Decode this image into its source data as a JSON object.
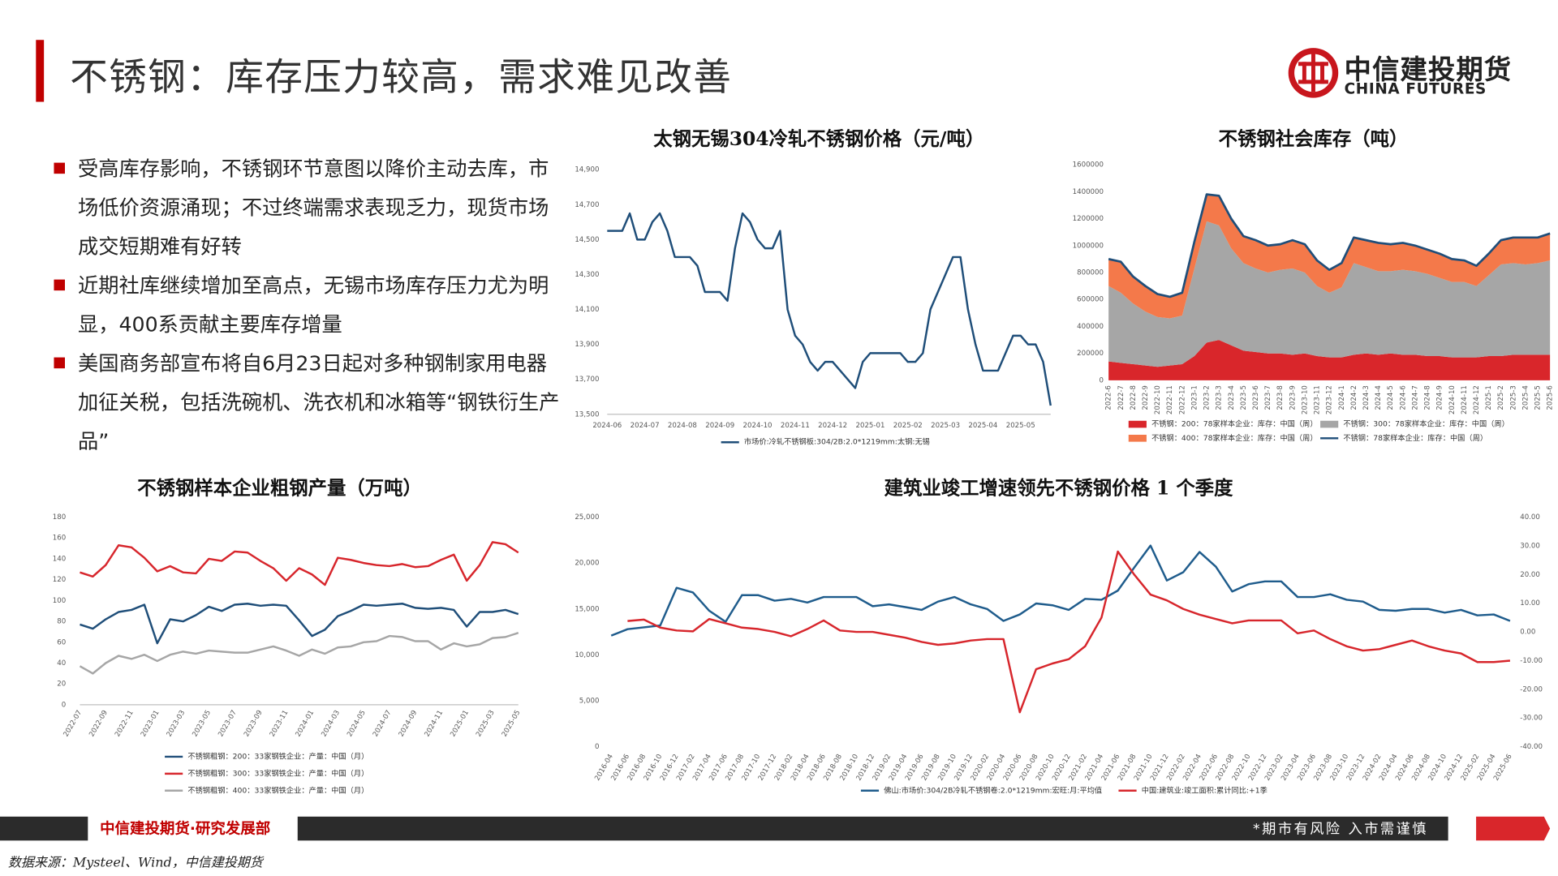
{
  "header": {
    "title": "不锈钢：库存压力较高，需求难见改善",
    "logo_cn": "中信建投期货",
    "logo_en": "CHINA FUTURES"
  },
  "bullets": [
    "受高库存影响，不锈钢环节意图以降价主动去库，市场低价资源涌现；不过终端需求表现乏力，现货市场成交短期难有好转",
    "近期社库继续增加至高点，无锡市场库存压力尤为明显，400系贡献主要库存增量",
    "美国商务部宣布将自6月23日起对多种钢制家用电器加征关税，包括洗碗机、洗衣机和冰箱等“钢铁衍生产品”"
  ],
  "footer": {
    "left": "中信建投期货·研究发展部",
    "right": "*期市有风险 入市需谨慎",
    "source": "数据来源：Mysteel、Wind，中信建投期货"
  },
  "chart_data": [
    {
      "type": "line",
      "title": "太钢无锡304冷轧不锈钢价格（元/吨）",
      "categories": [
        "2024-06",
        null,
        null,
        null,
        null,
        "2024-07",
        null,
        null,
        null,
        null,
        "2024-08",
        null,
        null,
        null,
        null,
        "2024-09",
        null,
        null,
        null,
        null,
        "2024-10",
        null,
        null,
        null,
        null,
        "2024-11",
        null,
        null,
        null,
        null,
        "2024-12",
        null,
        null,
        null,
        null,
        "2025-01",
        null,
        null,
        null,
        null,
        "2025-02",
        null,
        null,
        null,
        null,
        "2025-03",
        null,
        null,
        null,
        null,
        "2025-04",
        null,
        null,
        null,
        null,
        "2025-05",
        null,
        null,
        null,
        null
      ],
      "series": [
        {
          "name": "市场价:冷轧不锈钢板:304/2B:2.0*1219mm:太钢:无锡",
          "color": "#1f4e79",
          "values": [
            14550,
            14550,
            14550,
            14650,
            14500,
            14500,
            14600,
            14650,
            14550,
            14400,
            14400,
            14400,
            14350,
            14200,
            14200,
            14200,
            14150,
            14450,
            14650,
            14600,
            14500,
            14450,
            14450,
            14550,
            14100,
            13950,
            13900,
            13800,
            13750,
            13800,
            13800,
            13750,
            13700,
            13650,
            13800,
            13850,
            13850,
            13850,
            13850,
            13850,
            13800,
            13800,
            13850,
            14100,
            14200,
            14300,
            14400,
            14400,
            14100,
            13900,
            13750,
            13750,
            13750,
            13850,
            13950,
            13950,
            13900,
            13900,
            13800,
            13550
          ]
        }
      ],
      "ylim": [
        13500,
        14900
      ],
      "yticks": [
        {
          "value": 13500,
          "label": "13,500"
        },
        {
          "value": 13700,
          "label": "13,700"
        },
        {
          "value": 13900,
          "label": "13,900"
        },
        {
          "value": 14100,
          "label": "14,100"
        },
        {
          "value": 14300,
          "label": "14,300"
        },
        {
          "value": 14500,
          "label": "14,500"
        },
        {
          "value": 14700,
          "label": "14,700"
        },
        {
          "value": 14900,
          "label": "14,900"
        }
      ],
      "grid": false
    },
    {
      "type": "area",
      "stacked": true,
      "title": "不锈钢社会库存（吨）",
      "categories": [
        "2022-6",
        "2022-7",
        "2022-8",
        "2022-9",
        "2022-10",
        "2022-11",
        "2022-12",
        "2023-1",
        "2023-2",
        "2023-3",
        "2023-4",
        "2023-5",
        "2023-6",
        "2023-7",
        "2023-8",
        "2023-9",
        "2023-10",
        "2023-11",
        "2023-12",
        "2024-1",
        "2024-2",
        "2024-3",
        "2024-4",
        "2024-5",
        "2024-6",
        "2024-7",
        "2024-8",
        "2024-9",
        "2024-10",
        "2024-11",
        "2024-12",
        "2025-1",
        "2025-2",
        "2025-3",
        "2025-4",
        "2025-5",
        "2025-6"
      ],
      "series": [
        {
          "name": "不锈钢：200：78家样本企业：库存：中国（周）",
          "color": "#d9262b",
          "values": [
            140000,
            130000,
            120000,
            110000,
            100000,
            110000,
            120000,
            180000,
            280000,
            300000,
            260000,
            220000,
            210000,
            200000,
            200000,
            190000,
            200000,
            180000,
            170000,
            170000,
            190000,
            200000,
            190000,
            200000,
            190000,
            190000,
            180000,
            180000,
            170000,
            170000,
            170000,
            180000,
            180000,
            190000,
            190000,
            190000,
            190000
          ]
        },
        {
          "name": "不锈钢：300：78家样本企业：库存：中国（周）",
          "color": "#a6a6a6",
          "values": [
            560000,
            520000,
            450000,
            400000,
            370000,
            350000,
            360000,
            650000,
            900000,
            850000,
            720000,
            650000,
            620000,
            600000,
            620000,
            640000,
            600000,
            520000,
            480000,
            520000,
            680000,
            640000,
            620000,
            610000,
            630000,
            620000,
            610000,
            580000,
            560000,
            560000,
            530000,
            600000,
            680000,
            680000,
            670000,
            680000,
            700000
          ]
        },
        {
          "name": "不锈钢：400：78家样本企业：库存：中国（周）",
          "color": "#f4794a",
          "values": [
            200000,
            230000,
            200000,
            190000,
            170000,
            160000,
            170000,
            200000,
            200000,
            220000,
            220000,
            200000,
            210000,
            200000,
            190000,
            210000,
            210000,
            190000,
            170000,
            180000,
            190000,
            200000,
            210000,
            200000,
            200000,
            190000,
            180000,
            180000,
            170000,
            160000,
            150000,
            160000,
            180000,
            190000,
            200000,
            190000,
            200000
          ]
        },
        {
          "name": "不锈钢：78家样本企业：库存：中国（周）",
          "color": "#1f4e79",
          "type": "line",
          "values": [
            900000,
            880000,
            770000,
            700000,
            640000,
            620000,
            650000,
            1030000,
            1380000,
            1370000,
            1200000,
            1070000,
            1040000,
            1000000,
            1010000,
            1040000,
            1010000,
            890000,
            820000,
            870000,
            1060000,
            1040000,
            1020000,
            1010000,
            1020000,
            1000000,
            970000,
            940000,
            900000,
            890000,
            850000,
            940000,
            1040000,
            1060000,
            1060000,
            1060000,
            1090000
          ]
        }
      ],
      "ylim": [
        0,
        1600000
      ],
      "yticks": [
        0,
        200000,
        400000,
        600000,
        800000,
        1000000,
        1200000,
        1400000,
        1600000
      ],
      "grid": false
    },
    {
      "type": "line",
      "title": "不锈钢样本企业粗钢产量（万吨）",
      "categories": [
        "2022-07",
        null,
        "2022-09",
        null,
        "2022-11",
        null,
        "2023-01",
        null,
        "2023-03",
        null,
        "2023-05",
        null,
        "2023-07",
        null,
        "2023-09",
        null,
        "2023-11",
        null,
        "2024-01",
        null,
        "2024-03",
        null,
        "2024-05",
        null,
        "2024-07",
        null,
        "2024-09",
        null,
        "2024-11",
        null,
        "2025-01",
        null,
        "2025-03",
        null,
        "2025-05"
      ],
      "series": [
        {
          "name": "不锈钢粗钢：200：33家钢铁企业：产量：中国（月）",
          "color": "#1f4e79",
          "values": [
            77,
            73,
            82,
            89,
            91,
            96,
            59,
            82,
            80,
            86,
            94,
            90,
            96,
            97,
            95,
            96,
            95,
            81,
            66,
            72,
            85,
            90,
            96,
            95,
            96,
            97,
            93,
            92,
            93,
            91,
            75,
            89,
            89,
            91,
            87
          ]
        },
        {
          "name": "不锈钢粗钢：300：33家钢铁企业：产量：中国（月）",
          "color": "#d7262c",
          "values": [
            127,
            123,
            134,
            153,
            151,
            141,
            128,
            133,
            127,
            126,
            140,
            138,
            147,
            146,
            138,
            131,
            119,
            131,
            125,
            115,
            141,
            139,
            136,
            134,
            133,
            135,
            132,
            133,
            139,
            144,
            119,
            134,
            156,
            154,
            146
          ]
        },
        {
          "name": "不锈钢粗钢：400：33家钢铁企业：产量：中国（月）",
          "color": "#a6a6a6",
          "values": [
            37,
            30,
            40,
            47,
            44,
            48,
            42,
            48,
            51,
            49,
            52,
            51,
            50,
            50,
            53,
            56,
            52,
            47,
            53,
            49,
            55,
            56,
            60,
            61,
            66,
            65,
            61,
            61,
            53,
            59,
            56,
            58,
            64,
            65,
            69
          ]
        }
      ],
      "ylim": [
        0,
        180
      ],
      "yticks": [
        0,
        20,
        40,
        60,
        80,
        100,
        120,
        140,
        160,
        180
      ],
      "grid": false
    },
    {
      "type": "line",
      "title": "建筑业竣工增速领先不锈钢价格 1 个季度",
      "categories": [
        "2016-04",
        "2016-06",
        "2016-08",
        "2016-10",
        "2016-12",
        "2017-02",
        "2017-04",
        "2017-06",
        "2017-08",
        "2017-10",
        "2017-12",
        "2018-02",
        "2018-04",
        "2018-06",
        "2018-08",
        "2018-10",
        "2018-12",
        "2019-02",
        "2019-04",
        "2019-06",
        "2019-08",
        "2019-10",
        "2019-12",
        "2020-02",
        "2020-04",
        "2020-06",
        "2020-08",
        "2020-10",
        "2020-12",
        "2021-02",
        "2021-04",
        "2021-06",
        "2021-08",
        "2021-10",
        "2021-12",
        "2022-02",
        "2022-04",
        "2022-06",
        "2022-08",
        "2022-10",
        "2022-12",
        "2023-02",
        "2023-04",
        "2023-06",
        "2023-08",
        "2023-10",
        "2023-12",
        "2024-02",
        "2024-04",
        "2024-06",
        "2024-08",
        "2024-10",
        "2024-12",
        "2025-02",
        "2025-04",
        "2025-06"
      ],
      "series": [
        {
          "name": "佛山:市场价:304/2B冷轧不锈钢卷:2.0*1219mm:宏旺:月:平均值",
          "color": "#1f5c8c",
          "values": [
            12100,
            12800,
            13000,
            13200,
            17300,
            16800,
            14800,
            13600,
            16500,
            16500,
            15900,
            16100,
            15700,
            16300,
            16300,
            16300,
            15300,
            15500,
            15200,
            14900,
            15800,
            16300,
            15500,
            15000,
            13700,
            14400,
            15600,
            15400,
            14900,
            16100,
            16000,
            17000,
            19500,
            21900,
            18100,
            19000,
            21200,
            19600,
            16900,
            17700,
            18000,
            18000,
            16300,
            16300,
            16600,
            16000,
            15800,
            14900,
            14800,
            15000,
            15000,
            14600,
            14900,
            14300,
            14400,
            13700
          ]
        },
        {
          "name": "中国:建筑业:竣工面积:累计同比:+1季",
          "color": "#d7262c",
          "axis": "y2",
          "values": [
            null,
            3.8,
            4.3,
            1.5,
            0.5,
            0.2,
            4.5,
            3,
            1.5,
            1,
            0,
            -1.5,
            1,
            4,
            0.5,
            0,
            0,
            -1,
            -2,
            -3.5,
            -4.5,
            -4,
            -3,
            -2.5,
            -2.5,
            -28,
            -13,
            -11,
            -9.5,
            -5,
            5,
            28,
            20,
            13,
            11,
            8,
            6,
            4.5,
            3,
            4,
            4,
            4,
            -0.5,
            0.5,
            -2.5,
            -5,
            -6.5,
            -6,
            -4.5,
            -3,
            -5,
            -6.5,
            -7.5,
            -10.5,
            -10.5,
            -10
          ]
        }
      ],
      "ylim": [
        0,
        25000
      ],
      "yticks": [
        0,
        {
          "value": 5000,
          "label": "5,000"
        },
        {
          "value": 10000,
          "label": "10,000"
        },
        {
          "value": 15000,
          "label": "15,000"
        },
        {
          "value": 20000,
          "label": "20,000"
        },
        {
          "value": 25000,
          "label": "25,000"
        }
      ],
      "y2lim": [
        -40,
        40
      ],
      "y2ticks": [
        {
          "value": -40,
          "label": "-40.00"
        },
        {
          "value": -30,
          "label": "-30.00"
        },
        {
          "value": -20,
          "label": "-20.00"
        },
        {
          "value": -10,
          "label": "-10.00"
        },
        {
          "value": 0,
          "label": "0.00"
        },
        {
          "value": 10,
          "label": "10.00"
        },
        {
          "value": 20,
          "label": "20.00"
        },
        {
          "value": 30,
          "label": "30.00"
        },
        {
          "value": 40,
          "label": "40.00"
        }
      ],
      "grid": false
    }
  ]
}
